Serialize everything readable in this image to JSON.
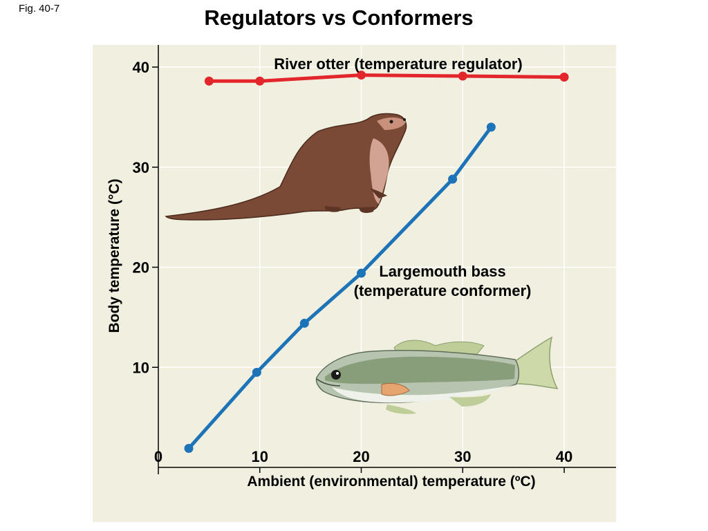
{
  "figure_label": "Fig. 40-7",
  "chart_data": {
    "type": "line",
    "title": "Regulators vs Conformers",
    "xlabel": "Ambient (environmental) temperature (ºC)",
    "ylabel": "Body temperature (°C)",
    "xlim": [
      0,
      45
    ],
    "ylim": [
      0,
      42.5
    ],
    "x_ticks": [
      0,
      10,
      20,
      30,
      40
    ],
    "x_tick_labels": [
      "0",
      "10",
      "20",
      "30",
      "40"
    ],
    "y_ticks": [
      10,
      20,
      30,
      40
    ],
    "y_tick_labels": [
      "10",
      "20",
      "30",
      "40"
    ],
    "grid": true,
    "series": [
      {
        "name": "River otter (temperature regulator)",
        "color": "#e2262b",
        "points": [
          [
            5,
            38.6
          ],
          [
            10,
            38.6
          ],
          [
            20,
            39.2
          ],
          [
            30,
            39.1
          ],
          [
            40,
            39.0
          ]
        ]
      },
      {
        "name": "Largemouth bass (temperature conformer)",
        "name_lines": [
          "Largemouth bass",
          "(temperature conformer)"
        ],
        "color": "#1c73b8",
        "points": [
          [
            3,
            1.9
          ],
          [
            9.7,
            9.5
          ],
          [
            14.4,
            14.4
          ],
          [
            20,
            19.4
          ],
          [
            29,
            28.8
          ],
          [
            32.8,
            34.0
          ]
        ]
      }
    ],
    "illustrations": [
      "river-otter",
      "largemouth-bass"
    ]
  }
}
